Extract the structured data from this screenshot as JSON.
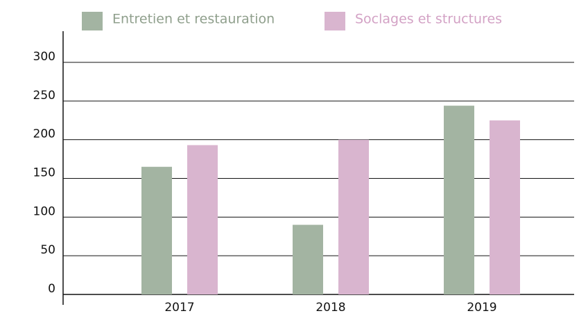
{
  "chart_data": {
    "type": "bar",
    "categories": [
      "2017",
      "2018",
      "2019"
    ],
    "series": [
      {
        "name": "Entretien et restauration",
        "color": "#a3b4a2",
        "values": [
          165,
          90,
          244
        ]
      },
      {
        "name": "Soclages et structures",
        "color": "#d9b5cf",
        "values": [
          193,
          200,
          225
        ]
      }
    ],
    "ylim": [
      0,
      300
    ],
    "yticks": [
      0,
      50,
      100,
      150,
      200,
      250,
      300
    ],
    "grid": true,
    "legend": "top"
  }
}
